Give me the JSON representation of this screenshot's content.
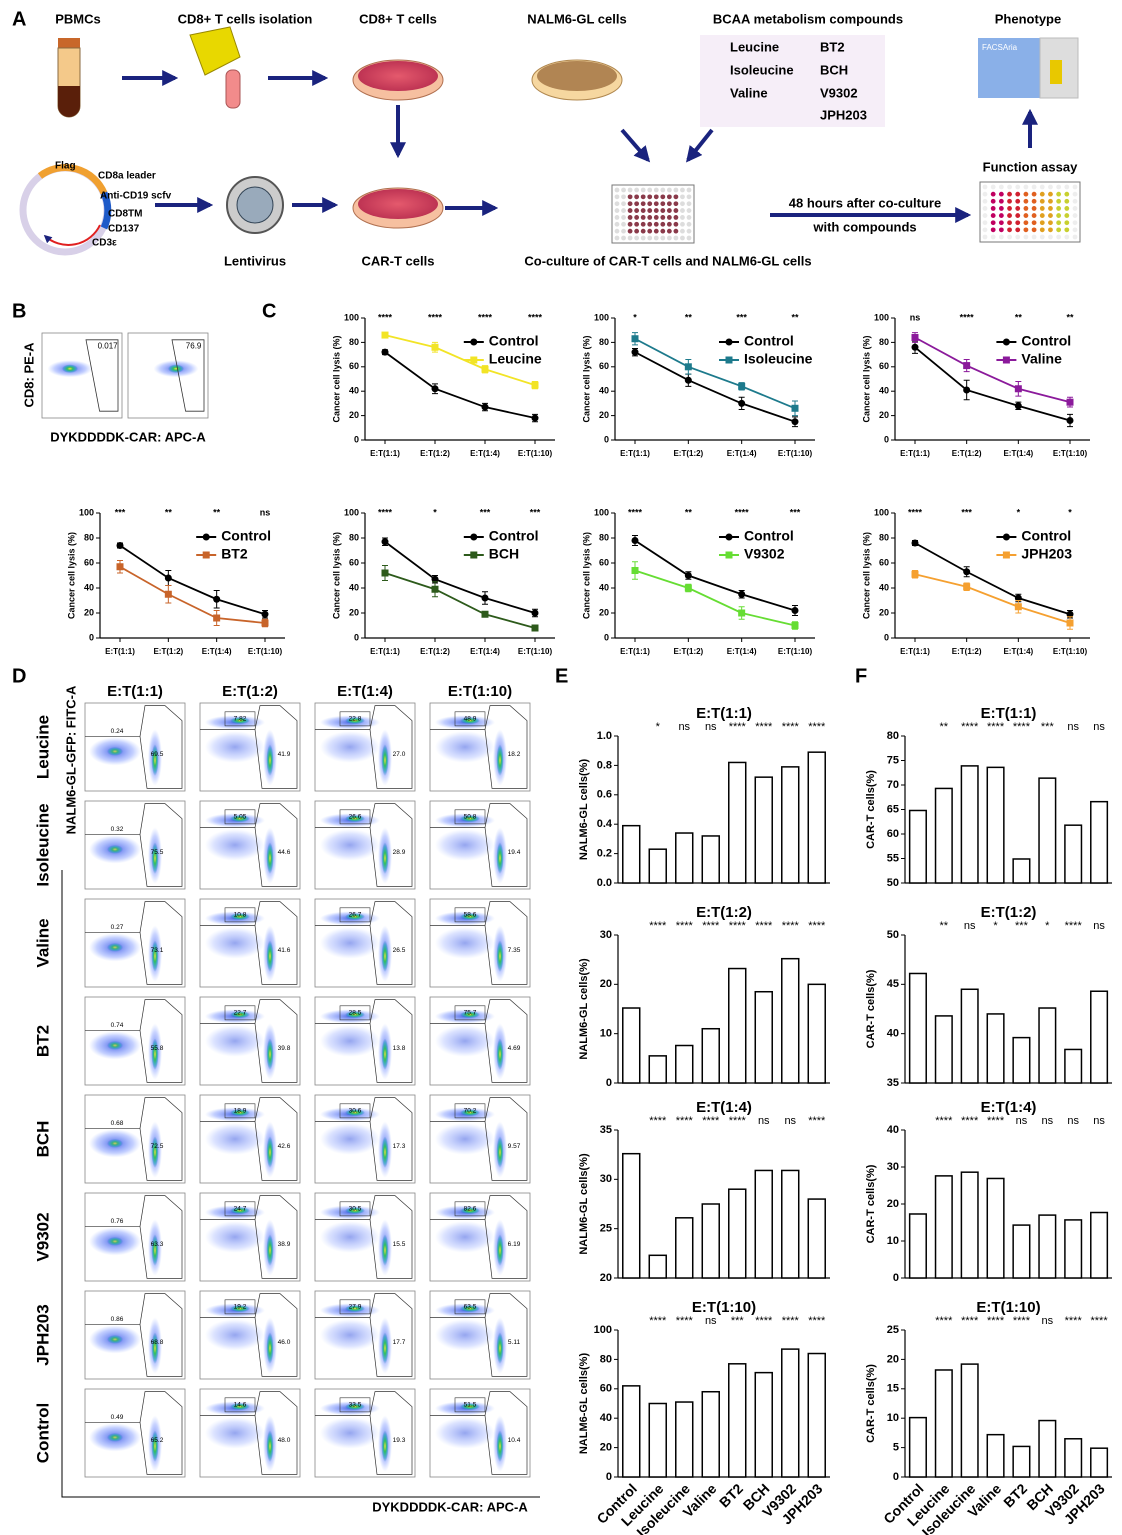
{
  "panel_labels": [
    "A",
    "B",
    "C",
    "D",
    "E",
    "F"
  ],
  "panel_a": {
    "pbmcs": "PBMCs",
    "isolation": "CD8+ T cells isolation",
    "cd8": "CD8+ T cells",
    "nalm6": "NALM6-GL cells",
    "bcaa_title": "BCAA metabolism compounds",
    "compounds": [
      "Leucine",
      "Isoleucine",
      "Valine",
      "BT2",
      "BCH",
      "V9302",
      "JPH203"
    ],
    "phenotype": "Phenotype",
    "facsaria": "FACSAria",
    "function_assay": "Function assay",
    "coculture_note": [
      "48 hours after co-culture",
      "with compounds"
    ],
    "coculture": "Co-culture of CAR-T cells and NALM6-GL cells",
    "lentivirus": "Lentivirus",
    "car_t": "CAR-T cells",
    "construct": [
      "Flag",
      "CD8a leader",
      "Anti-CD19 scfv",
      "CD8TM",
      "CD137",
      "CD3ε"
    ]
  },
  "panel_b": {
    "y_label": "CD8: PE-A",
    "x_label": "DYKDDDDK-CAR: APC-A",
    "gates": [
      "0.017",
      "76.9"
    ]
  },
  "chart_data": [
    {
      "type": "line",
      "y_label": "Cancer cell lysis (%)",
      "categories": [
        "E:T(1:1)",
        "E:T(1:2)",
        "E:T(1:4)",
        "E:T(1:10)"
      ],
      "ylim": [
        0,
        100
      ],
      "yticks": [
        0,
        20,
        40,
        60,
        80,
        100
      ],
      "significance": [
        "****",
        "****",
        "****",
        "****"
      ],
      "series": [
        {
          "name": "Control",
          "color": "#000000",
          "values": [
            72,
            42,
            27,
            18
          ],
          "errors": [
            2,
            4,
            3,
            3
          ]
        },
        {
          "name": "Leucine",
          "color": "#f2e426",
          "values": [
            86,
            76,
            58,
            45
          ],
          "errors": [
            2,
            4,
            3,
            3
          ]
        }
      ]
    },
    {
      "type": "line",
      "y_label": "Cancer cell lysis (%)",
      "categories": [
        "E:T(1:1)",
        "E:T(1:2)",
        "E:T(1:4)",
        "E:T(1:10)"
      ],
      "ylim": [
        0,
        100
      ],
      "yticks": [
        0,
        20,
        40,
        60,
        80,
        100
      ],
      "significance": [
        "*",
        "**",
        "***",
        "**"
      ],
      "series": [
        {
          "name": "Control",
          "color": "#000000",
          "values": [
            72,
            49,
            30,
            15
          ],
          "errors": [
            3,
            5,
            5,
            4
          ]
        },
        {
          "name": "Isoleucine",
          "color": "#1d7a8c",
          "values": [
            83,
            60,
            44,
            26
          ],
          "errors": [
            5,
            6,
            3,
            6
          ]
        }
      ]
    },
    {
      "type": "line",
      "y_label": "Cancer cell lysis (%)",
      "categories": [
        "E:T(1:1)",
        "E:T(1:2)",
        "E:T(1:4)",
        "E:T(1:10)"
      ],
      "ylim": [
        0,
        100
      ],
      "yticks": [
        0,
        20,
        40,
        60,
        80,
        100
      ],
      "significance": [
        "ns",
        "****",
        "**",
        "**"
      ],
      "series": [
        {
          "name": "Control",
          "color": "#000000",
          "values": [
            76,
            41,
            28,
            16
          ],
          "errors": [
            5,
            8,
            3,
            5
          ]
        },
        {
          "name": "Valine",
          "color": "#8b1a9b",
          "values": [
            84,
            61,
            42,
            31
          ],
          "errors": [
            4,
            5,
            6,
            4
          ]
        }
      ]
    },
    {
      "type": "line",
      "y_label": "Cancer cell lysis (%)",
      "categories": [
        "E:T(1:1)",
        "E:T(1:2)",
        "E:T(1:4)",
        "E:T(1:10)"
      ],
      "ylim": [
        0,
        100
      ],
      "yticks": [
        0,
        20,
        40,
        60,
        80,
        100
      ],
      "significance": [
        "***",
        "**",
        "**",
        "ns"
      ],
      "series": [
        {
          "name": "Control",
          "color": "#000000",
          "values": [
            74,
            48,
            31,
            19
          ],
          "errors": [
            2,
            6,
            7,
            3
          ]
        },
        {
          "name": "BT2",
          "color": "#c8642a",
          "values": [
            57,
            35,
            16,
            12
          ],
          "errors": [
            5,
            7,
            6,
            3
          ]
        }
      ]
    },
    {
      "type": "line",
      "y_label": "Cancer cell lysis (%)",
      "categories": [
        "E:T(1:1)",
        "E:T(1:2)",
        "E:T(1:4)",
        "E:T(1:10)"
      ],
      "ylim": [
        0,
        100
      ],
      "yticks": [
        0,
        20,
        40,
        60,
        80,
        100
      ],
      "significance": [
        "****",
        "*",
        "***",
        "***"
      ],
      "series": [
        {
          "name": "Control",
          "color": "#000000",
          "values": [
            77,
            47,
            32,
            20
          ],
          "errors": [
            3,
            3,
            5,
            3
          ]
        },
        {
          "name": "BCH",
          "color": "#2d5a1b",
          "values": [
            52,
            39,
            19,
            8
          ],
          "errors": [
            6,
            6,
            2,
            1
          ]
        }
      ]
    },
    {
      "type": "line",
      "y_label": "Cancer cell lysis (%)",
      "categories": [
        "E:T(1:1)",
        "E:T(1:2)",
        "E:T(1:4)",
        "E:T(1:10)"
      ],
      "ylim": [
        0,
        100
      ],
      "yticks": [
        0,
        20,
        40,
        60,
        80,
        100
      ],
      "significance": [
        "****",
        "**",
        "****",
        "***"
      ],
      "series": [
        {
          "name": "Control",
          "color": "#000000",
          "values": [
            78,
            50,
            35,
            22
          ],
          "errors": [
            4,
            3,
            3,
            4
          ]
        },
        {
          "name": "V9302",
          "color": "#66dd33",
          "values": [
            54,
            40,
            20,
            10
          ],
          "errors": [
            7,
            3,
            5,
            3
          ]
        }
      ]
    },
    {
      "type": "line",
      "y_label": "Cancer cell lysis (%)",
      "categories": [
        "E:T(1:1)",
        "E:T(1:2)",
        "E:T(1:4)",
        "E:T(1:10)"
      ],
      "ylim": [
        0,
        100
      ],
      "yticks": [
        0,
        20,
        40,
        60,
        80,
        100
      ],
      "significance": [
        "****",
        "***",
        "*",
        "*"
      ],
      "series": [
        {
          "name": "Control",
          "color": "#000000",
          "values": [
            76,
            53,
            32,
            19
          ],
          "errors": [
            2,
            4,
            3,
            3
          ]
        },
        {
          "name": "JPH203",
          "color": "#f5a030",
          "values": [
            51,
            41,
            25,
            12
          ],
          "errors": [
            3,
            3,
            5,
            5
          ]
        }
      ]
    },
    {
      "type": "bar",
      "title": "E:T(1:1)",
      "y_label": "NALM6-GL cells(%)",
      "ylim": [
        0,
        1
      ],
      "yticks": [
        {
          "value": 0,
          "label": "0.0"
        },
        0.2,
        0.4,
        0.6,
        0.8,
        {
          "value": 1,
          "label": "1.0"
        }
      ],
      "significance": [
        "*",
        "ns",
        "ns",
        "****",
        "****",
        "****",
        "****"
      ],
      "values": [
        0.39,
        0.23,
        0.34,
        0.32,
        0.82,
        0.72,
        0.79,
        0.89
      ]
    },
    {
      "type": "bar",
      "title": "E:T(1:2)",
      "y_label": "NALM6-GL cells(%)",
      "ylim": [
        0,
        30
      ],
      "yticks": [
        0,
        10,
        20,
        30
      ],
      "significance": [
        "****",
        "****",
        "****",
        "****",
        "****",
        "****",
        "****"
      ],
      "values": [
        15.2,
        5.5,
        7.6,
        11.0,
        23.2,
        18.5,
        25.2,
        20.0
      ]
    },
    {
      "type": "bar",
      "title": "E:T(1:4)",
      "y_label": "NALM6-GL cells(%)",
      "ylim": [
        20,
        35
      ],
      "yticks": [
        20,
        25,
        30,
        35
      ],
      "significance": [
        "****",
        "****",
        "****",
        "****",
        "ns",
        "ns",
        "****"
      ],
      "values": [
        32.6,
        22.3,
        26.1,
        27.5,
        29.0,
        30.9,
        30.9,
        28.0
      ]
    },
    {
      "type": "bar",
      "title": "E:T(1:10)",
      "y_label": "NALM6-GL cells(%)",
      "ylim": [
        0,
        100
      ],
      "yticks": [
        0,
        20,
        40,
        60,
        80,
        100
      ],
      "significance": [
        "****",
        "****",
        "ns",
        "***",
        "****",
        "****",
        "****"
      ],
      "values": [
        62,
        50,
        51,
        58,
        77,
        71,
        87,
        84
      ],
      "categories": [
        "Control",
        "Leucine",
        "Isoleucine",
        "Valine",
        "BT2",
        "BCH",
        "V9302",
        "JPH203"
      ]
    },
    {
      "type": "bar",
      "title": "E:T(1:1)",
      "y_label": "CAR-T cells(%)",
      "ylim": [
        50,
        80
      ],
      "yticks": [
        50,
        55,
        60,
        65,
        70,
        75,
        80
      ],
      "significance": [
        "**",
        "****",
        "****",
        "****",
        "***",
        "ns",
        "ns"
      ],
      "values": [
        64.8,
        69.3,
        73.9,
        73.6,
        54.9,
        71.4,
        61.8,
        66.6
      ]
    },
    {
      "type": "bar",
      "title": "E:T(1:2)",
      "y_label": "CAR-T cells(%)",
      "ylim": [
        35,
        50
      ],
      "yticks": [
        35,
        40,
        45,
        50
      ],
      "significance": [
        "**",
        "ns",
        "*",
        "***",
        "*",
        "****",
        "ns"
      ],
      "values": [
        46.1,
        41.8,
        44.5,
        42.0,
        39.6,
        42.6,
        38.4,
        44.3
      ]
    },
    {
      "type": "bar",
      "title": "E:T(1:4)",
      "y_label": "CAR-T cells(%)",
      "ylim": [
        0,
        40
      ],
      "yticks": [
        0,
        10,
        20,
        30,
        40
      ],
      "significance": [
        "****",
        "****",
        "****",
        "ns",
        "ns",
        "ns",
        "ns"
      ],
      "values": [
        17.3,
        27.6,
        28.6,
        26.9,
        14.3,
        17.0,
        15.7,
        17.7
      ]
    },
    {
      "type": "bar",
      "title": "E:T(1:10)",
      "y_label": "CAR-T cells(%)",
      "ylim": [
        0,
        25
      ],
      "yticks": [
        0,
        5,
        10,
        15,
        20,
        25
      ],
      "significance": [
        "****",
        "****",
        "****",
        "****",
        "ns",
        "****",
        "****"
      ],
      "values": [
        10.1,
        18.2,
        19.2,
        7.2,
        5.2,
        9.6,
        6.5,
        4.9
      ],
      "categories": [
        "Control",
        "Leucine",
        "Isoleucine",
        "Valine",
        "BT2",
        "BCH",
        "V9302",
        "JPH203"
      ]
    }
  ],
  "flow": {
    "columns": [
      "E:T(1:1)",
      "E:T(1:2)",
      "E:T(1:4)",
      "E:T(1:10)"
    ],
    "y_label": "NALM6-GL-GFP: FITC-A",
    "x_label": "DYKDDDDK-CAR: APC-A",
    "rows": [
      {
        "name": "Leucine",
        "gates": [
          [
            "0.24",
            "69.5"
          ],
          [
            "7.82",
            "41.9"
          ],
          [
            "22.8",
            "27.0"
          ],
          [
            "48.9",
            "18.2"
          ]
        ]
      },
      {
        "name": "Isoleucine",
        "gates": [
          [
            "0.32",
            "75.5"
          ],
          [
            "5.05",
            "44.6"
          ],
          [
            "26.6",
            "28.9"
          ],
          [
            "50.8",
            "19.4"
          ]
        ]
      },
      {
        "name": "Valine",
        "gates": [
          [
            "0.27",
            "73.1"
          ],
          [
            "10.8",
            "41.6"
          ],
          [
            "26.7",
            "26.5"
          ],
          [
            "58.6",
            "7.35"
          ]
        ]
      },
      {
        "name": "BT2",
        "gates": [
          [
            "0.74",
            "55.8"
          ],
          [
            "22.7",
            "39.8"
          ],
          [
            "28.5",
            "13.8"
          ],
          [
            "75.7",
            "4.69"
          ]
        ]
      },
      {
        "name": "BCH",
        "gates": [
          [
            "0.68",
            "72.5"
          ],
          [
            "18.9",
            "42.6"
          ],
          [
            "30.6",
            "17.3"
          ],
          [
            "70.2",
            "9.57"
          ]
        ]
      },
      {
        "name": "V9302",
        "gates": [
          [
            "0.76",
            "63.3"
          ],
          [
            "24.7",
            "38.9"
          ],
          [
            "30.5",
            "15.5"
          ],
          [
            "82.6",
            "6.19"
          ]
        ]
      },
      {
        "name": "JPH203",
        "gates": [
          [
            "0.86",
            "68.8"
          ],
          [
            "19.2",
            "46.0"
          ],
          [
            "27.9",
            "17.7"
          ],
          [
            "63.5",
            "5.11"
          ]
        ]
      },
      {
        "name": "Control",
        "gates": [
          [
            "0.49",
            "65.2"
          ],
          [
            "14.6",
            "48.0"
          ],
          [
            "33.5",
            "19.3"
          ],
          [
            "51.5",
            "10.4"
          ]
        ]
      }
    ]
  }
}
